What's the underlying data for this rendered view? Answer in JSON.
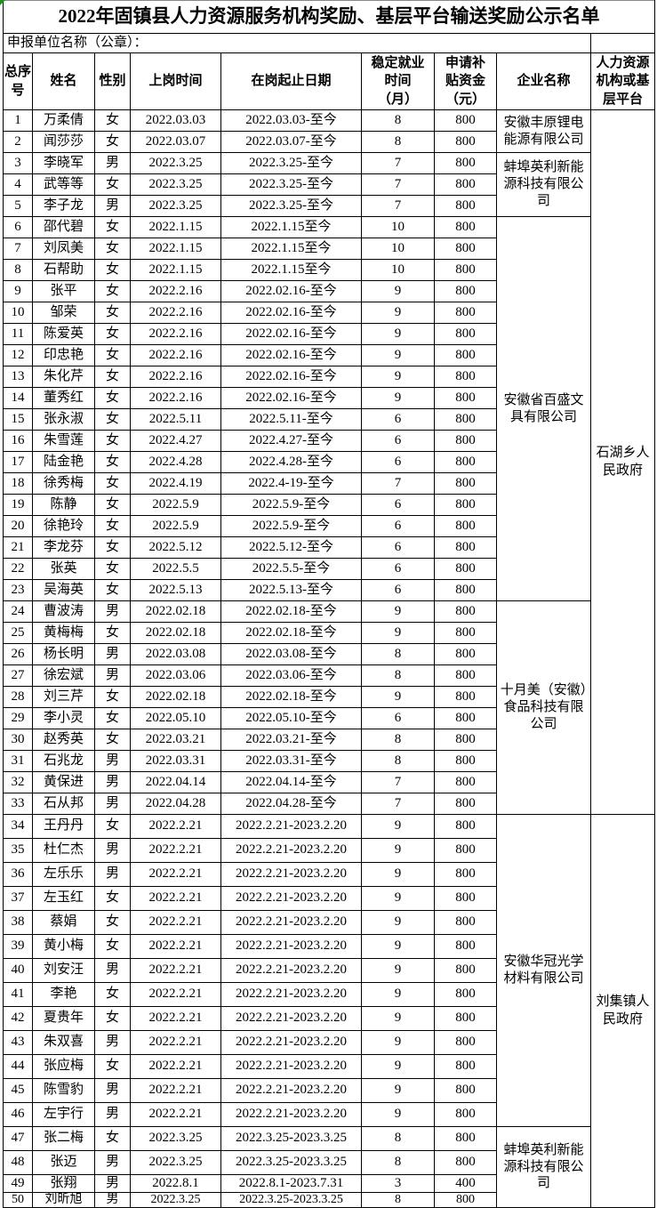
{
  "title": "2022年固镇县人力资源服务机构奖励、基层平台输送奖励公示名单",
  "declaration_label": "申报单位名称（公章）：",
  "ui": {
    "background_color": "#FFFFFF",
    "text_color": "#000000",
    "border_color": "#000000",
    "corner_flag_color": "#228B22"
  },
  "table": {
    "headers": [
      "总序\n号",
      "姓名",
      "性别",
      "上岗时间",
      "在岗起止日期",
      "稳定就业\n时间\n（月）",
      "申请补\n贴资金\n（元）",
      "企业名称",
      "人力资源\n机构或基\n层平台"
    ],
    "rows": [
      [
        "1",
        "万柔倩",
        "女",
        "2022.03.03",
        "2022.03.03-至今",
        "8",
        "800"
      ],
      [
        "2",
        "闻莎莎",
        "女",
        "2022.03.07",
        "2022.03.07-至今",
        "8",
        "800"
      ],
      [
        "3",
        "李晓军",
        "男",
        "2022.3.25",
        "2022.3.25-至今",
        "7",
        "800"
      ],
      [
        "4",
        "武等等",
        "女",
        "2022.3.25",
        "2022.3.25-至今",
        "7",
        "800"
      ],
      [
        "5",
        "李子龙",
        "男",
        "2022.3.25",
        "2022.3.25-至今",
        "7",
        "800"
      ],
      [
        "6",
        "邵代碧",
        "女",
        "2022.1.15",
        "2022.1.15至今",
        "10",
        "800"
      ],
      [
        "7",
        "刘凤美",
        "女",
        "2022.1.15",
        "2022.1.15至今",
        "10",
        "800"
      ],
      [
        "8",
        "石帮助",
        "女",
        "2022.1.15",
        "2022.1.15至今",
        "10",
        "800"
      ],
      [
        "9",
        "张平",
        "女",
        "2022.2.16",
        "2022.02.16-至今",
        "9",
        "800"
      ],
      [
        "10",
        "邹荣",
        "女",
        "2022.2.16",
        "2022.02.16-至今",
        "9",
        "800"
      ],
      [
        "11",
        "陈爱英",
        "女",
        "2022.2.16",
        "2022.02.16-至今",
        "9",
        "800"
      ],
      [
        "12",
        "印忠艳",
        "女",
        "2022.2.16",
        "2022.02.16-至今",
        "9",
        "800"
      ],
      [
        "13",
        "朱化芹",
        "女",
        "2022.2.16",
        "2022.02.16-至今",
        "9",
        "800"
      ],
      [
        "14",
        "董秀红",
        "女",
        "2022.2.16",
        "2022.02.16-至今",
        "9",
        "800"
      ],
      [
        "15",
        "张永淑",
        "女",
        "2022.5.11",
        "2022.5.11-至今",
        "6",
        "800"
      ],
      [
        "16",
        "朱雪莲",
        "女",
        "2022.4.27",
        "2022.4.27-至今",
        "6",
        "800"
      ],
      [
        "17",
        "陆金艳",
        "女",
        "2022.4.28",
        "2022.4.28-至今",
        "6",
        "800"
      ],
      [
        "18",
        "徐秀梅",
        "女",
        "2022.4.19",
        "2022.4-19-至今",
        "7",
        "800"
      ],
      [
        "19",
        "陈静",
        "女",
        "2022.5.9",
        "2022.5.9-至今",
        "6",
        "800"
      ],
      [
        "20",
        "徐艳玲",
        "女",
        "2022.5.9",
        "2022.5.9-至今",
        "6",
        "800"
      ],
      [
        "21",
        "李龙芬",
        "女",
        "2022.5.12",
        "2022.5.12-至今",
        "6",
        "800"
      ],
      [
        "22",
        "张英",
        "女",
        "2022.5.5",
        "2022.5.5-至今",
        "6",
        "800"
      ],
      [
        "23",
        "吴海英",
        "女",
        "2022.5.13",
        "2022.5.13-至今",
        "6",
        "800"
      ],
      [
        "24",
        "曹波涛",
        "男",
        "2022.02.18",
        "2022.02.18-至今",
        "9",
        "800"
      ],
      [
        "25",
        "黄梅梅",
        "女",
        "2022.02.18",
        "2022.02.18-至今",
        "9",
        "800"
      ],
      [
        "26",
        "杨长明",
        "男",
        "2022.03.08",
        "2022.03.08-至今",
        "8",
        "800"
      ],
      [
        "27",
        "徐宏斌",
        "男",
        "2022.03.06",
        "2022.03.06-至今",
        "8",
        "800"
      ],
      [
        "28",
        "刘三芹",
        "女",
        "2022.02.18",
        "2022.02.18-至今",
        "9",
        "800"
      ],
      [
        "29",
        "李小灵",
        "女",
        "2022.05.10",
        "2022.05.10-至今",
        "6",
        "800"
      ],
      [
        "30",
        "赵秀英",
        "女",
        "2022.03.21",
        "2022.03.21-至今",
        "8",
        "800"
      ],
      [
        "31",
        "石兆龙",
        "男",
        "2022.03.31",
        "2022.03.31-至今",
        "8",
        "800"
      ],
      [
        "32",
        "黄保进",
        "男",
        "2022.04.14",
        "2022.04.14-至今",
        "7",
        "800"
      ],
      [
        "33",
        "石从邦",
        "男",
        "2022.04.28",
        "2022.04.28-至今",
        "7",
        "800"
      ],
      [
        "34",
        "王丹丹",
        "女",
        "2022.2.21",
        "2022.2.21-2023.2.20",
        "9",
        "800"
      ],
      [
        "35",
        "杜仁杰",
        "男",
        "2022.2.21",
        "2022.2.21-2023.2.20",
        "9",
        "800"
      ],
      [
        "36",
        "左乐乐",
        "男",
        "2022.2.21",
        "2022.2.21-2023.2.20",
        "9",
        "800"
      ],
      [
        "37",
        "左玉红",
        "女",
        "2022.2.21",
        "2022.2.21-2023.2.20",
        "9",
        "800"
      ],
      [
        "38",
        "蔡娟",
        "女",
        "2022.2.21",
        "2022.2.21-2023.2.20",
        "9",
        "800"
      ],
      [
        "39",
        "黄小梅",
        "女",
        "2022.2.21",
        "2022.2.21-2023.2.20",
        "9",
        "800"
      ],
      [
        "40",
        "刘安汪",
        "男",
        "2022.2.21",
        "2022.2.21-2023.2.20",
        "9",
        "800"
      ],
      [
        "41",
        "李艳",
        "女",
        "2022.2.21",
        "2022.2.21-2023.2.20",
        "9",
        "800"
      ],
      [
        "42",
        "夏贵年",
        "女",
        "2022.2.21",
        "2022.2.21-2023.2.20",
        "9",
        "800"
      ],
      [
        "43",
        "朱双喜",
        "男",
        "2022.2.21",
        "2022.2.21-2023.2.20",
        "9",
        "800"
      ],
      [
        "44",
        "张应梅",
        "女",
        "2022.2.21",
        "2022.2.21-2023.2.20",
        "9",
        "800"
      ],
      [
        "45",
        "陈雪豹",
        "男",
        "2022.2.21",
        "2022.2.21-2023.2.20",
        "9",
        "800"
      ],
      [
        "46",
        "左宇行",
        "男",
        "2022.2.21",
        "2022.2.21-2023.2.20",
        "9",
        "800"
      ],
      [
        "47",
        "张二梅",
        "女",
        "2022.3.25",
        "2022.3.25-2023.3.25",
        "8",
        "800"
      ],
      [
        "48",
        "张迈",
        "男",
        "2022.3.25",
        "2022.3.25-2023.3.25",
        "8",
        "800"
      ],
      [
        "49",
        "张翔",
        "男",
        "2022.8.1",
        "2022.8.1-2023.7.31",
        "3",
        "400"
      ],
      [
        "50",
        "刘昕旭",
        "男",
        "2022.3.25",
        "2022.3.25-2023.3.25",
        "8",
        "800"
      ]
    ],
    "company_cells": [
      {
        "row": 1,
        "span": 2,
        "text": "安徽丰原锂电能源有限公司"
      },
      {
        "row": 3,
        "span": 3,
        "text": "蚌埠英利新能源科技有限公司"
      },
      {
        "row": 6,
        "span": 18,
        "text": "安徽省百盛文具有限公司"
      },
      {
        "row": 24,
        "span": 10,
        "text": "十月美（安徽）食品科技有限公司"
      },
      {
        "row": 34,
        "span": 13,
        "text": "安徽华冠光学材料有限公司"
      },
      {
        "row": 47,
        "span": 4,
        "text": "蚌埠英利新能源科技有限公司"
      }
    ],
    "platform_cells": [
      {
        "row": 1,
        "span": 33,
        "text": "石湖乡人民政府"
      },
      {
        "row": 34,
        "span": 17,
        "text": "刘集镇人民政府"
      }
    ]
  }
}
